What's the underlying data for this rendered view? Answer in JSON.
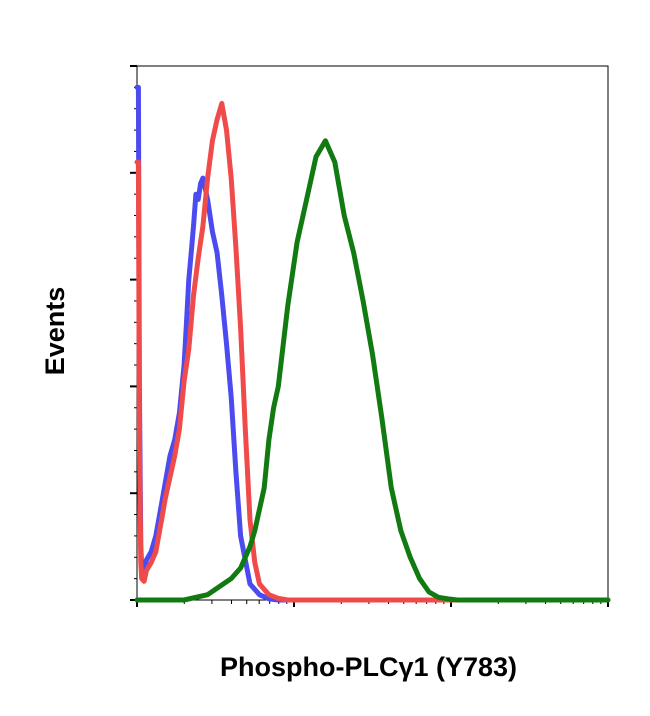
{
  "chart_data": {
    "type": "line",
    "title": "",
    "xlabel": "Phospho-PLCγ1 (Y783)",
    "ylabel": "Events",
    "x_scale": "log",
    "xlim": [
      0,
      1
    ],
    "ylim": [
      0,
      1
    ],
    "grid": false,
    "legend": "none",
    "series": [
      {
        "color": "#4b4bf0",
        "x": [
          0.0,
          0.003,
          0.005,
          0.008,
          0.01,
          0.015,
          0.02,
          0.03,
          0.04,
          0.05,
          0.06,
          0.07,
          0.08,
          0.09,
          0.1,
          0.105,
          0.11,
          0.115,
          0.12,
          0.125,
          0.13,
          0.135,
          0.14,
          0.145,
          0.15,
          0.155,
          0.16,
          0.17,
          0.18,
          0.19,
          0.2,
          0.21,
          0.22,
          0.24,
          0.26,
          0.28,
          0.3,
          0.32,
          0.35
        ],
        "y": [
          0.96,
          0.96,
          0.4,
          0.1,
          0.06,
          0.055,
          0.075,
          0.09,
          0.12,
          0.17,
          0.22,
          0.27,
          0.3,
          0.35,
          0.44,
          0.52,
          0.6,
          0.65,
          0.7,
          0.76,
          0.75,
          0.78,
          0.79,
          0.77,
          0.75,
          0.72,
          0.69,
          0.65,
          0.57,
          0.48,
          0.38,
          0.24,
          0.12,
          0.03,
          0.01,
          0.002,
          0.0,
          0.0,
          0.0
        ]
      },
      {
        "color": "#f04b4b",
        "x": [
          0.0,
          0.003,
          0.005,
          0.008,
          0.01,
          0.015,
          0.02,
          0.03,
          0.04,
          0.05,
          0.06,
          0.07,
          0.08,
          0.09,
          0.1,
          0.11,
          0.12,
          0.13,
          0.14,
          0.15,
          0.16,
          0.17,
          0.18,
          0.19,
          0.2,
          0.21,
          0.22,
          0.23,
          0.24,
          0.25,
          0.26,
          0.28,
          0.3,
          0.32,
          0.35,
          0.4,
          0.5,
          0.7,
          1.0
        ],
        "y": [
          0.82,
          0.82,
          0.3,
          0.07,
          0.04,
          0.035,
          0.055,
          0.07,
          0.09,
          0.14,
          0.19,
          0.23,
          0.27,
          0.32,
          0.41,
          0.47,
          0.57,
          0.64,
          0.7,
          0.79,
          0.86,
          0.9,
          0.93,
          0.88,
          0.79,
          0.66,
          0.51,
          0.32,
          0.15,
          0.07,
          0.03,
          0.01,
          0.003,
          0.0,
          0.0,
          0.0,
          0.0,
          0.0,
          0.0
        ]
      },
      {
        "color": "#117a11",
        "x": [
          0.0,
          0.05,
          0.1,
          0.15,
          0.2,
          0.22,
          0.24,
          0.25,
          0.26,
          0.27,
          0.28,
          0.29,
          0.3,
          0.32,
          0.34,
          0.36,
          0.38,
          0.4,
          0.42,
          0.44,
          0.46,
          0.48,
          0.5,
          0.52,
          0.54,
          0.56,
          0.58,
          0.6,
          0.62,
          0.64,
          0.66,
          0.68,
          0.7,
          0.75,
          0.8,
          0.9,
          1.0
        ],
        "y": [
          0.0,
          0.0,
          0.0,
          0.01,
          0.04,
          0.06,
          0.1,
          0.13,
          0.17,
          0.21,
          0.3,
          0.36,
          0.4,
          0.55,
          0.67,
          0.75,
          0.83,
          0.86,
          0.82,
          0.72,
          0.65,
          0.56,
          0.46,
          0.34,
          0.21,
          0.13,
          0.08,
          0.04,
          0.015,
          0.005,
          0.002,
          0.0,
          0.0,
          0.0,
          0.0,
          0.0,
          0.0
        ]
      }
    ]
  }
}
